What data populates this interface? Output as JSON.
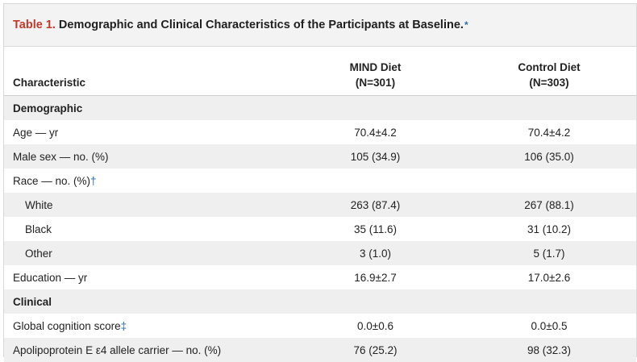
{
  "title": {
    "label": "Table 1.",
    "text": "Demographic and Clinical Characteristics of the Participants at Baseline.",
    "footnote_mark": "*"
  },
  "columns": {
    "characteristic": "Characteristic",
    "mind_line1": "MIND Diet",
    "mind_line2": "(N=301)",
    "control_line1": "Control Diet",
    "control_line2": "(N=303)"
  },
  "rows": [
    {
      "label": "Demographic",
      "mind": "",
      "control": "",
      "section": true
    },
    {
      "label": "Age — yr",
      "mind": "70.4±4.2",
      "control": "70.4±4.2"
    },
    {
      "label": "Male sex — no. (%)",
      "mind": "105 (34.9)",
      "control": "106 (35.0)"
    },
    {
      "label": "Race — no. (%)",
      "footnote": "†",
      "mind": "",
      "control": ""
    },
    {
      "label": "White",
      "mind": "263 (87.4)",
      "control": "267 (88.1)",
      "indent": true
    },
    {
      "label": "Black",
      "mind": "35 (11.6)",
      "control": "31 (10.2)",
      "indent": true
    },
    {
      "label": "Other",
      "mind": "3 (1.0)",
      "control": "5 (1.7)",
      "indent": true
    },
    {
      "label": "Education — yr",
      "mind": "16.9±2.7",
      "control": "17.0±2.6"
    },
    {
      "label": "Clinical",
      "mind": "",
      "control": "",
      "section": true
    },
    {
      "label": "Global cognition score",
      "footnote": "‡",
      "mind": "0.0±0.6",
      "control": "0.0±0.5"
    },
    {
      "label": "Apolipoprotein E ε4 allele carrier — no. (%)",
      "mind": "76 (25.2)",
      "control": "98 (32.3)"
    }
  ]
}
